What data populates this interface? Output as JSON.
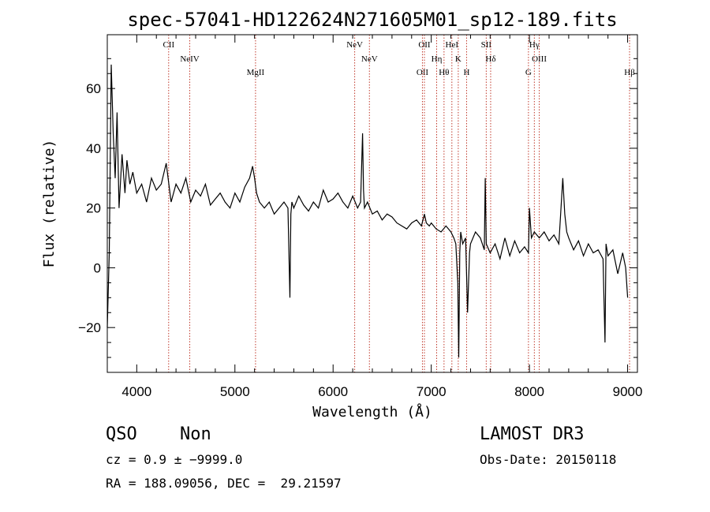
{
  "chart_data": {
    "type": "line",
    "title": "spec-57041-HD122624N271605M01_sp12-189.fits",
    "xlabel": "Wavelength (Å)",
    "ylabel": "Flux (relative)",
    "xlim": [
      3700,
      9100
    ],
    "ylim": [
      -35,
      78
    ],
    "xticks": [
      4000,
      5000,
      6000,
      7000,
      8000,
      9000
    ],
    "yticks": [
      -20,
      0,
      20,
      40,
      60
    ],
    "xtick_labels": [
      "4000",
      "5000",
      "6000",
      "7000",
      "8000",
      "9000"
    ],
    "ytick_labels": [
      "−20",
      "0",
      "20",
      "40",
      "60"
    ],
    "series": [
      {
        "name": "flux",
        "x": [
          3700,
          3720,
          3740,
          3760,
          3780,
          3800,
          3820,
          3850,
          3880,
          3900,
          3930,
          3960,
          4000,
          4050,
          4100,
          4150,
          4200,
          4250,
          4300,
          4350,
          4400,
          4450,
          4500,
          4550,
          4600,
          4650,
          4700,
          4750,
          4800,
          4850,
          4900,
          4950,
          5000,
          5050,
          5100,
          5150,
          5180,
          5200,
          5220,
          5250,
          5300,
          5350,
          5400,
          5450,
          5500,
          5540,
          5560,
          5570,
          5580,
          5600,
          5650,
          5700,
          5750,
          5800,
          5850,
          5900,
          5950,
          6000,
          6050,
          6100,
          6150,
          6200,
          6250,
          6280,
          6300,
          6310,
          6320,
          6350,
          6400,
          6450,
          6500,
          6550,
          6600,
          6650,
          6700,
          6750,
          6800,
          6850,
          6900,
          6930,
          6950,
          6980,
          7000,
          7050,
          7100,
          7150,
          7200,
          7230,
          7250,
          7270,
          7280,
          7290,
          7300,
          7320,
          7350,
          7370,
          7390,
          7400,
          7450,
          7500,
          7540,
          7550,
          7560,
          7600,
          7650,
          7700,
          7750,
          7800,
          7850,
          7900,
          7950,
          7990,
          8000,
          8020,
          8050,
          8100,
          8150,
          8200,
          8250,
          8300,
          8340,
          8360,
          8380,
          8400,
          8450,
          8500,
          8550,
          8600,
          8650,
          8700,
          8750,
          8770,
          8780,
          8800,
          8850,
          8900,
          8950,
          8980,
          9000
        ],
        "values": [
          -20,
          5,
          68,
          45,
          30,
          52,
          20,
          38,
          25,
          36,
          28,
          32,
          25,
          28,
          22,
          30,
          26,
          28,
          35,
          22,
          28,
          25,
          30,
          22,
          26,
          24,
          28,
          21,
          23,
          25,
          22,
          20,
          25,
          22,
          27,
          30,
          34,
          30,
          25,
          22,
          20,
          22,
          18,
          20,
          22,
          20,
          -10,
          18,
          22,
          20,
          24,
          21,
          19,
          22,
          20,
          26,
          22,
          23,
          25,
          22,
          20,
          24,
          20,
          22,
          45,
          26,
          20,
          22,
          18,
          19,
          16,
          18,
          17,
          15,
          14,
          13,
          15,
          16,
          14,
          18,
          15,
          14,
          15,
          13,
          12,
          14,
          12,
          10,
          8,
          -5,
          -30,
          5,
          12,
          8,
          10,
          -15,
          5,
          8,
          12,
          10,
          6,
          30,
          8,
          5,
          8,
          3,
          10,
          4,
          9,
          5,
          7,
          5,
          20,
          10,
          12,
          10,
          12,
          9,
          11,
          8,
          30,
          18,
          12,
          10,
          6,
          9,
          4,
          8,
          5,
          6,
          3,
          -25,
          8,
          4,
          6,
          -2,
          5,
          0,
          -10
        ]
      }
    ],
    "emission_lines": [
      {
        "name": "CII",
        "wavelength": 4325
      },
      {
        "name": "NeIV",
        "wavelength": 4540
      },
      {
        "name": "MgII",
        "wavelength": 5210
      },
      {
        "name": "NeV",
        "wavelength": 6220
      },
      {
        "name": "NeV",
        "wavelength": 6370
      },
      {
        "name": "OII",
        "wavelength": 6910
      },
      {
        "name": "OII",
        "wavelength": 6930
      },
      {
        "name": "Hη",
        "wavelength": 7055
      },
      {
        "name": "Hθ",
        "wavelength": 7130
      },
      {
        "name": "HeI",
        "wavelength": 7210
      },
      {
        "name": "K",
        "wavelength": 7275
      },
      {
        "name": "H",
        "wavelength": 7360
      },
      {
        "name": "SII",
        "wavelength": 7560
      },
      {
        "name": "Hδ",
        "wavelength": 7605
      },
      {
        "name": "G",
        "wavelength": 7990
      },
      {
        "name": "Hγ",
        "wavelength": 8050
      },
      {
        "name": "OIII",
        "wavelength": 8100
      },
      {
        "name": "Hβ",
        "wavelength": 9020
      }
    ],
    "grid": false,
    "line_color": "#000000",
    "marker_color": "#c0392b"
  },
  "info": {
    "class": "QSO",
    "subclass": "Non",
    "survey": "LAMOST DR3",
    "cz": "cz = 0.9 ± −9999.0",
    "obs_date": "Obs-Date: 20150118",
    "coords": "RA = 188.09056, DEC =  29.21597"
  }
}
